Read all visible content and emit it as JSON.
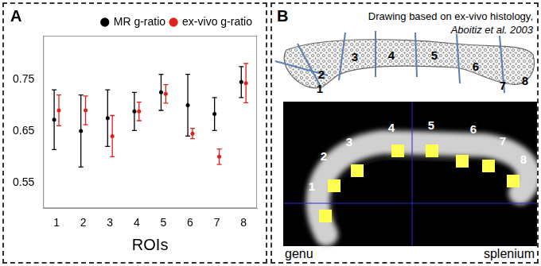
{
  "panel_labels": [
    "A",
    "B"
  ],
  "chart_data": {
    "type": "errorbar",
    "categories": [
      "1",
      "2",
      "3",
      "4",
      "5",
      "6",
      "7",
      "8"
    ],
    "x_label": "ROIs",
    "ylim": [
      0.5,
      0.835
    ],
    "yticks": [
      0.55,
      0.65,
      0.75
    ],
    "grid": false,
    "legend": "top-right",
    "series": [
      {
        "name": "MR g-ratio",
        "color": "#000000",
        "marker": "circle",
        "values": [
          0.672,
          0.65,
          0.675,
          0.688,
          0.725,
          0.7,
          0.683,
          0.745
        ],
        "errors": [
          0.058,
          0.07,
          0.055,
          0.037,
          0.035,
          0.06,
          0.032,
          0.03
        ]
      },
      {
        "name": "ex-vivo g-ratio",
        "color": "#e0201b",
        "marker": "circle",
        "values": [
          0.69,
          0.69,
          0.64,
          0.688,
          0.722,
          0.645,
          0.6,
          0.743
        ],
        "errors": [
          0.03,
          0.028,
          0.04,
          0.018,
          0.018,
          0.01,
          0.015,
          0.038
        ]
      }
    ]
  },
  "diagram": {
    "caption": "Drawing based on ex-vivo histology,",
    "citation": "Aboitiz et al. 2003",
    "drawing_labels": [
      "1",
      "2",
      "3",
      "4",
      "5",
      "6",
      "7",
      "8"
    ],
    "image_labels": [
      "1",
      "2",
      "3",
      "4",
      "5",
      "6",
      "7",
      "8"
    ],
    "left_label": "genu",
    "right_label": "splenium"
  }
}
